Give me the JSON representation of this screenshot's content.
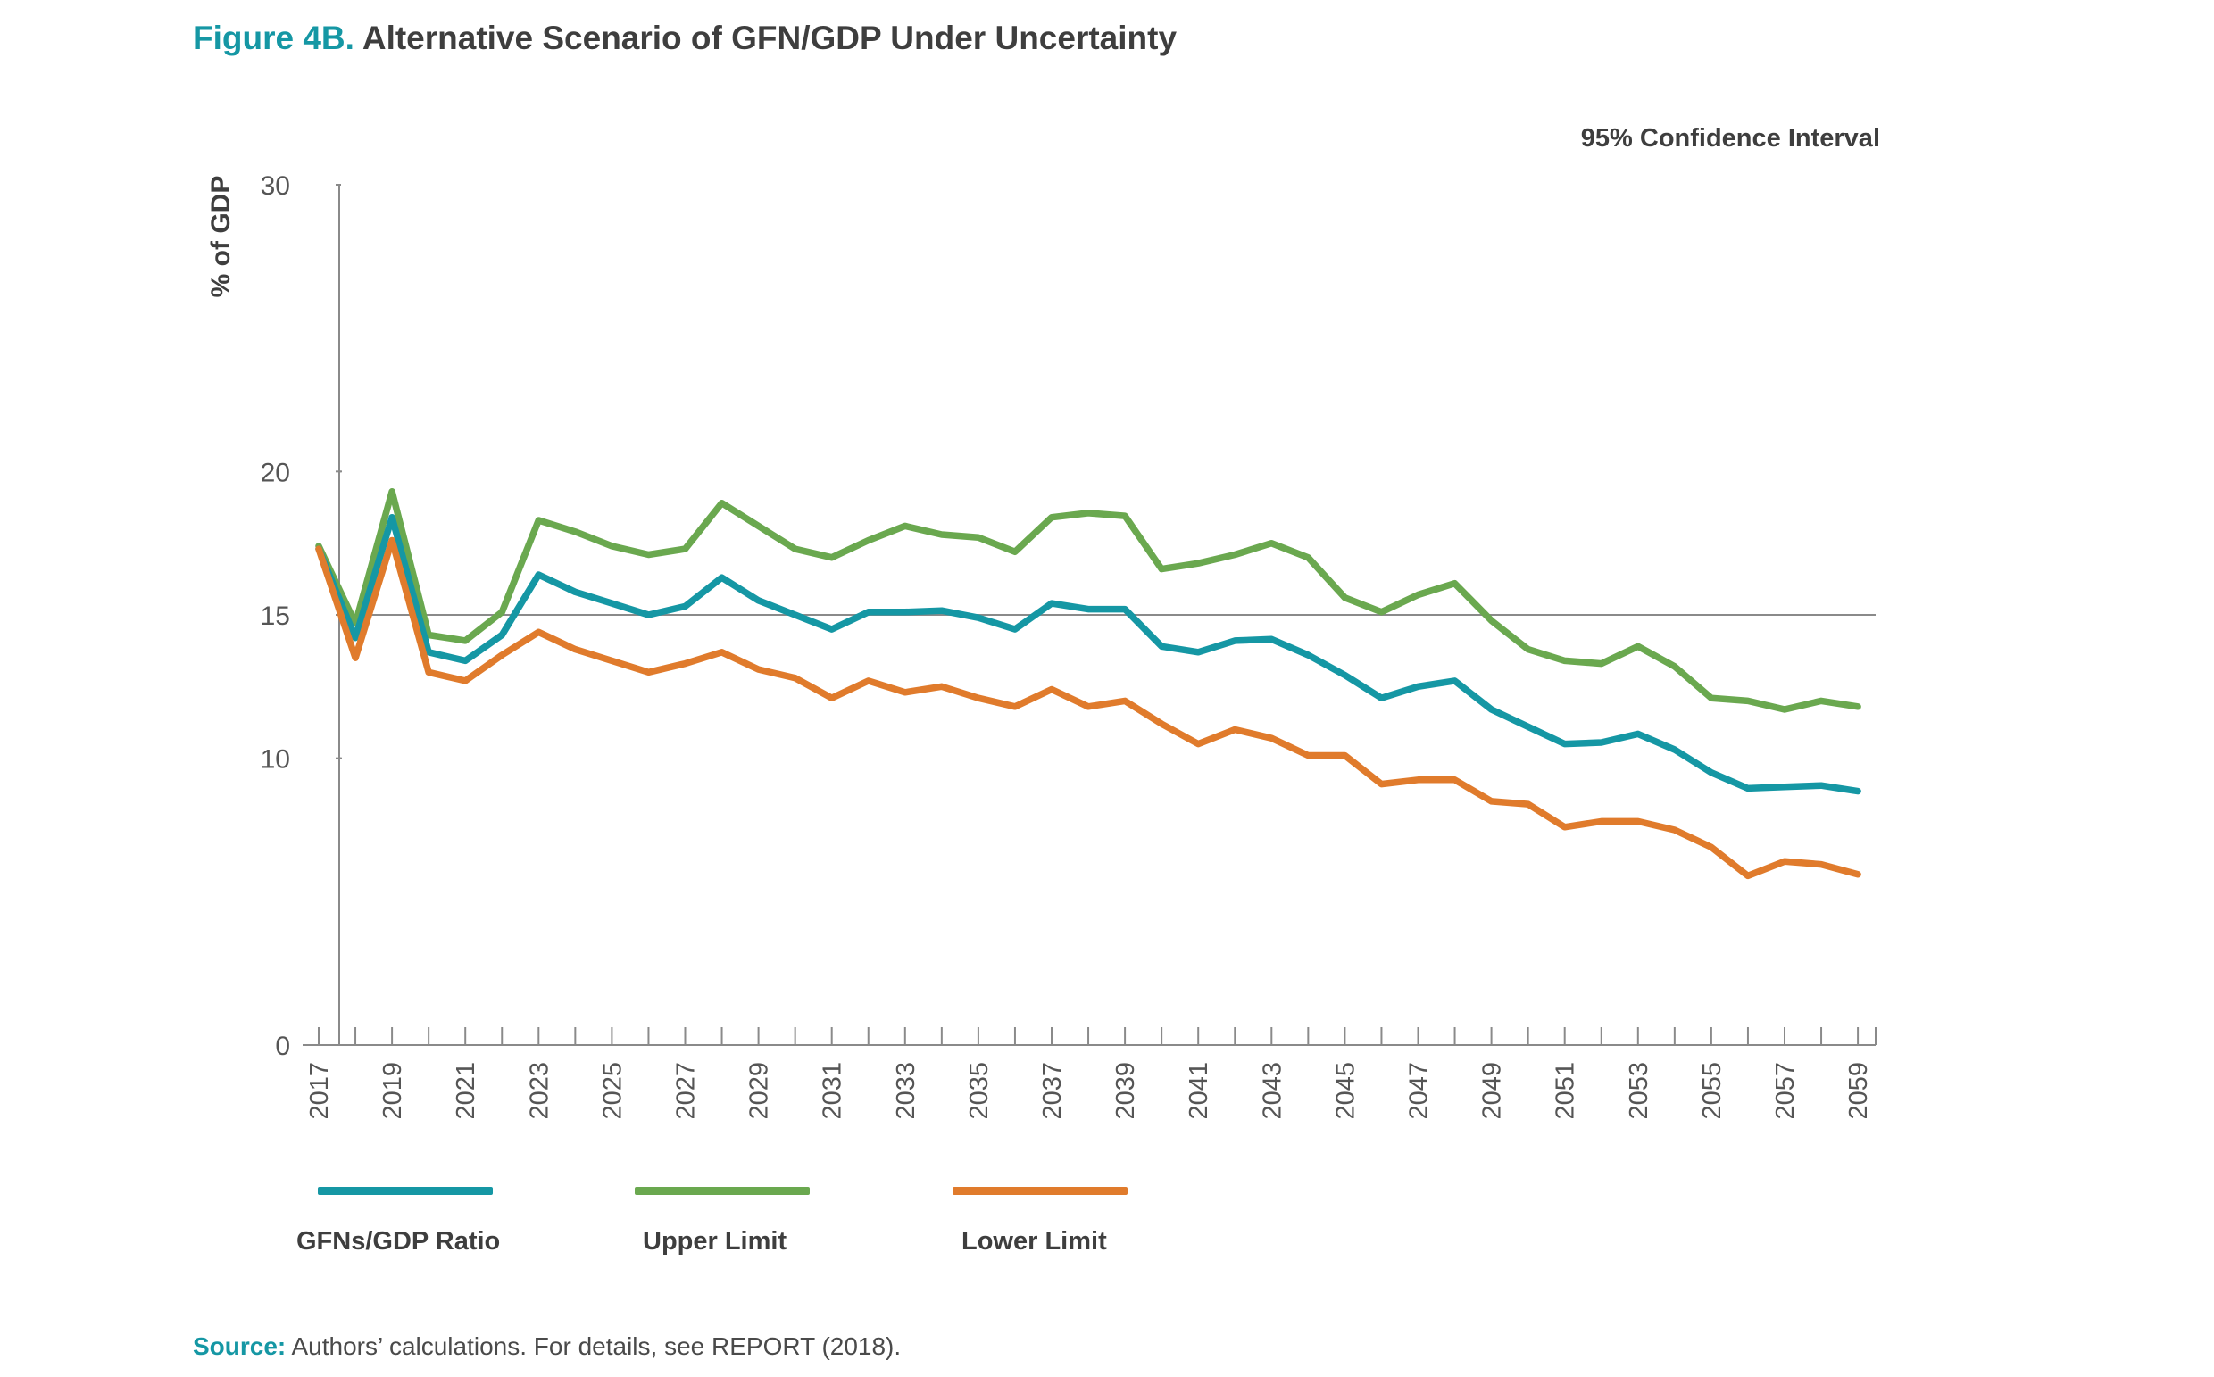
{
  "title": {
    "figure_label": "Figure 4B.",
    "text": "Alternative Scenario of GFN/GDP Under Uncertainty"
  },
  "source": {
    "label": "Source:",
    "text": "Authors’ calculations. For details, see REPORT (2018)."
  },
  "colors": {
    "accent": "#1597a4",
    "ratio": "#1597a4",
    "upper": "#6aa84f",
    "lower": "#e07b2c",
    "axis": "#8a8a8a",
    "text": "#3e3e3e"
  },
  "chart_data": {
    "type": "line",
    "title": "",
    "subtitle": "95% Confidence Interval",
    "xlabel": "",
    "ylabel": "% of GDP",
    "ylim": [
      0,
      30
    ],
    "yticks": [
      0,
      10,
      15,
      20,
      30
    ],
    "reference_line": 15,
    "legend_position": "bottom",
    "x": [
      2017,
      2018,
      2019,
      2020,
      2021,
      2022,
      2023,
      2024,
      2025,
      2026,
      2027,
      2028,
      2029,
      2030,
      2031,
      2032,
      2033,
      2034,
      2035,
      2036,
      2037,
      2038,
      2039,
      2040,
      2041,
      2042,
      2043,
      2044,
      2045,
      2046,
      2047,
      2048,
      2049,
      2050,
      2051,
      2052,
      2053,
      2054,
      2055,
      2056,
      2057,
      2058,
      2059
    ],
    "xtick_labels": [
      "2017",
      "2019",
      "2021",
      "2023",
      "2025",
      "2027",
      "2029",
      "2031",
      "2033",
      "2035",
      "2037",
      "2039",
      "2041",
      "2043",
      "2045",
      "2047",
      "2049",
      "2051",
      "2053",
      "2055",
      "2057",
      "2059"
    ],
    "series": [
      {
        "name": "GFNs/GDP Ratio",
        "color": "#1597a4",
        "values": [
          17.3,
          14.2,
          18.4,
          13.7,
          13.4,
          14.3,
          16.4,
          15.8,
          15.4,
          15.0,
          15.3,
          16.3,
          15.5,
          15.0,
          14.5,
          15.1,
          15.1,
          15.15,
          14.9,
          14.5,
          15.4,
          15.2,
          15.2,
          13.9,
          13.7,
          14.1,
          14.15,
          13.6,
          12.9,
          12.1,
          12.5,
          12.7,
          11.7,
          11.1,
          10.5,
          10.55,
          10.85,
          10.3,
          9.5,
          8.95,
          9.0,
          9.05,
          8.85
        ]
      },
      {
        "name": "Upper Limit",
        "color": "#6aa84f",
        "values": [
          17.4,
          14.7,
          19.3,
          14.3,
          14.1,
          15.1,
          18.3,
          17.9,
          17.4,
          17.1,
          17.3,
          18.9,
          18.1,
          17.3,
          17.0,
          17.6,
          18.1,
          17.8,
          17.7,
          17.2,
          18.4,
          18.55,
          18.45,
          16.6,
          16.8,
          17.1,
          17.5,
          17.0,
          15.6,
          15.1,
          15.7,
          16.1,
          14.8,
          13.8,
          13.4,
          13.3,
          13.9,
          13.2,
          12.1,
          12.0,
          11.7,
          12.0,
          11.8
        ]
      },
      {
        "name": "Lower Limit",
        "color": "#e07b2c",
        "values": [
          17.3,
          13.5,
          17.6,
          13.0,
          12.7,
          13.6,
          14.4,
          13.8,
          13.4,
          13.0,
          13.3,
          13.7,
          13.1,
          12.8,
          12.1,
          12.7,
          12.3,
          12.5,
          12.1,
          11.8,
          12.4,
          11.8,
          12.0,
          11.2,
          10.5,
          11.0,
          10.7,
          10.1,
          10.1,
          9.1,
          9.25,
          9.25,
          8.5,
          8.4,
          7.6,
          7.8,
          7.8,
          7.5,
          6.9,
          5.9,
          6.4,
          6.3,
          5.95
        ]
      }
    ]
  }
}
